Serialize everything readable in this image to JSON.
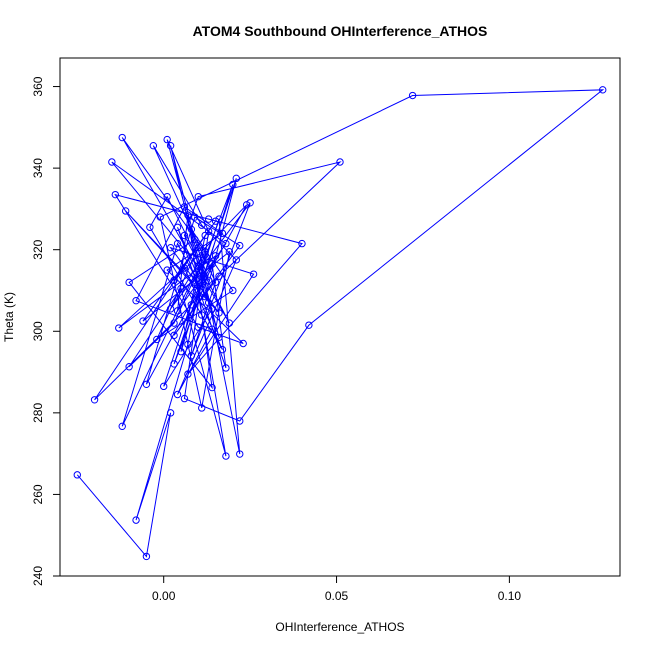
{
  "chart_data": {
    "type": "scatter",
    "title": "ATOM4 Southbound OHInterference_ATHOS",
    "xlabel": "OHInterference_ATHOS",
    "ylabel": "Theta (K)",
    "xlim": [
      -0.03,
      0.132
    ],
    "ylim": [
      240,
      367
    ],
    "x_ticks": [
      0.0,
      0.05,
      0.1
    ],
    "x_tick_labels": [
      "0.00",
      "0.05",
      "0.10"
    ],
    "y_ticks": [
      240,
      260,
      280,
      300,
      320,
      340,
      360
    ],
    "y_tick_labels": [
      "240",
      "260",
      "280",
      "300",
      "320",
      "340",
      "360"
    ],
    "grid": false,
    "series_color": "#0000ff",
    "marker": "open-circle",
    "connected": true,
    "points": [
      [
        -0.025,
        264.8
      ],
      [
        -0.005,
        244.8
      ],
      [
        0.002,
        280.0
      ],
      [
        -0.008,
        253.7
      ],
      [
        0.007,
        296.8
      ],
      [
        0.012,
        318.8
      ],
      [
        0.003,
        302.0
      ],
      [
        -0.01,
        291.3
      ],
      [
        0.005,
        310.5
      ],
      [
        0.018,
        269.4
      ],
      [
        0.009,
        314.0
      ],
      [
        -0.012,
        276.7
      ],
      [
        0.004,
        321.5
      ],
      [
        0.014,
        305.5
      ],
      [
        0.0,
        286.5
      ],
      [
        0.016,
        327.5
      ],
      [
        0.022,
        269.9
      ],
      [
        0.01,
        320.5
      ],
      [
        -0.002,
        298.0
      ],
      [
        0.02,
        310.0
      ],
      [
        0.008,
        325.0
      ],
      [
        0.013,
        312.5
      ],
      [
        0.001,
        333.0
      ],
      [
        -0.004,
        325.5
      ],
      [
        0.011,
        304.0
      ],
      [
        0.017,
        295.5
      ],
      [
        0.006,
        315.5
      ],
      [
        -0.013,
        300.8
      ],
      [
        0.015,
        318.5
      ],
      [
        0.003,
        292.0
      ],
      [
        0.021,
        337.5
      ],
      [
        0.012,
        308.5
      ],
      [
        0.002,
        345.5
      ],
      [
        0.009,
        322.5
      ],
      [
        -0.01,
        312.0
      ],
      [
        0.014,
        286.2
      ],
      [
        0.007,
        328.5
      ],
      [
        0.004,
        305.0
      ],
      [
        0.018,
        321.5
      ],
      [
        -0.015,
        341.5
      ],
      [
        0.01,
        316.0
      ],
      [
        0.016,
        298.5
      ],
      [
        0.001,
        347.0
      ],
      [
        0.013,
        324.5
      ],
      [
        0.006,
        283.5
      ],
      [
        0.022,
        278.0
      ],
      [
        0.042,
        301.5
      ],
      [
        0.127,
        359.2
      ],
      [
        0.072,
        357.8
      ],
      [
        -0.001,
        328.0
      ],
      [
        0.011,
        281.2
      ],
      [
        0.019,
        319.5
      ],
      [
        -0.006,
        302.5
      ],
      [
        0.015,
        327.0
      ],
      [
        0.003,
        312.5
      ],
      [
        0.024,
        331.0
      ],
      [
        0.008,
        306.5
      ],
      [
        -0.02,
        283.2
      ],
      [
        0.012,
        323.5
      ],
      [
        0.005,
        295.0
      ],
      [
        0.02,
        336.0
      ],
      [
        0.009,
        311.5
      ],
      [
        -0.011,
        329.5
      ],
      [
        0.016,
        304.5
      ],
      [
        0.002,
        320.5
      ],
      [
        0.026,
        314.0
      ],
      [
        0.007,
        289.5
      ],
      [
        0.04,
        321.5
      ],
      [
        0.013,
        327.5
      ],
      [
        -0.014,
        333.5
      ],
      [
        0.01,
        301.0
      ],
      [
        0.023,
        297.0
      ],
      [
        0.001,
        315.0
      ],
      [
        0.017,
        324.0
      ],
      [
        0.006,
        330.5
      ],
      [
        -0.008,
        307.5
      ],
      [
        0.014,
        300.5
      ],
      [
        0.004,
        284.5
      ],
      [
        0.021,
        317.5
      ],
      [
        0.011,
        326.0
      ],
      [
        -0.003,
        345.5
      ],
      [
        0.015,
        312.0
      ],
      [
        0.008,
        294.0
      ],
      [
        0.025,
        331.5
      ],
      [
        0.002,
        305.5
      ],
      [
        0.012,
        319.5
      ],
      [
        -0.012,
        347.5
      ],
      [
        0.019,
        302.0
      ],
      [
        0.006,
        323.5
      ],
      [
        0.01,
        333.0
      ],
      [
        0.051,
        341.5
      ],
      [
        0.016,
        313.5
      ],
      [
        0.003,
        299.0
      ],
      [
        0.022,
        321.0
      ],
      [
        0.009,
        328.0
      ],
      [
        -0.005,
        287.0
      ],
      [
        0.014,
        316.5
      ],
      [
        0.018,
        291.0
      ],
      [
        0.004,
        325.5
      ],
      [
        0.013,
        307.0
      ]
    ]
  }
}
